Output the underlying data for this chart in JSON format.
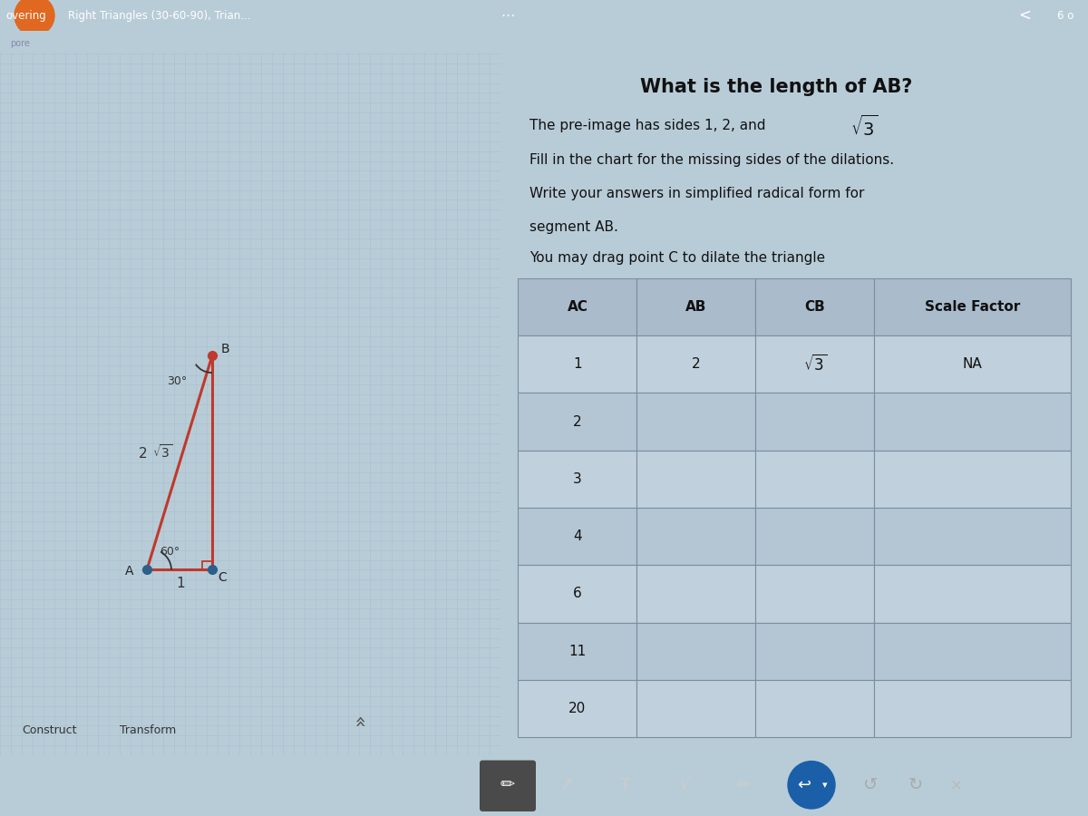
{
  "title_bar_text": "Right Triangles (30-60-90), Trian...",
  "title_bar_left": "overing",
  "tab_score": "6 o",
  "main_title": "What is the length of AB?",
  "subtitle1a": "The pre-image has sides 1, 2, and ",
  "subtitle1b": "3",
  "subtitle2": "Fill in the chart for the missing sides of the dilations.",
  "subtitle3a": "Write your answers in simplified radical form for",
  "subtitle3b": "segment AB.",
  "subtitle4": "You may drag point C to dilate the triangle",
  "table_headers": [
    "AC",
    "AB",
    "CB",
    "Scale Factor"
  ],
  "table_rows": [
    [
      "1",
      "2",
      "√3",
      "NA"
    ],
    [
      "2",
      "",
      "",
      ""
    ],
    [
      "3",
      "",
      "",
      ""
    ],
    [
      "4",
      "",
      "",
      ""
    ],
    [
      "6",
      "",
      "",
      ""
    ],
    [
      "11",
      "",
      "",
      ""
    ],
    [
      "20",
      "",
      "",
      ""
    ]
  ],
  "bg_color": "#b8ccd8",
  "grid_color_light": "#a8bece",
  "grid_color_dark": "#98aebe",
  "triangle_color": "#c0392b",
  "point_color_B": "#c0392b",
  "point_color_A": "#2c5f8a",
  "point_color_C": "#2c5f8a",
  "right_panel_bg": "#c4d4e0",
  "table_header_bg": "#aabccc",
  "table_row_bg_odd": "#c0d0dc",
  "table_row_bg_even": "#b4c6d4",
  "table_border_color": "#7a8e9e",
  "top_bar_bg": "#1a1a2e",
  "top_bar_text_color": "#ffffff",
  "orange_circle_color": "#e06820",
  "bottom_bar_bg": "#7a7a7a",
  "toolbar_active_bg": "#4a4a4a",
  "toolbar_icon_color": "#cccccc",
  "blue_circle_color": "#1a5fa8",
  "second_bar_bg": "#141428",
  "second_bar_text": "pore"
}
